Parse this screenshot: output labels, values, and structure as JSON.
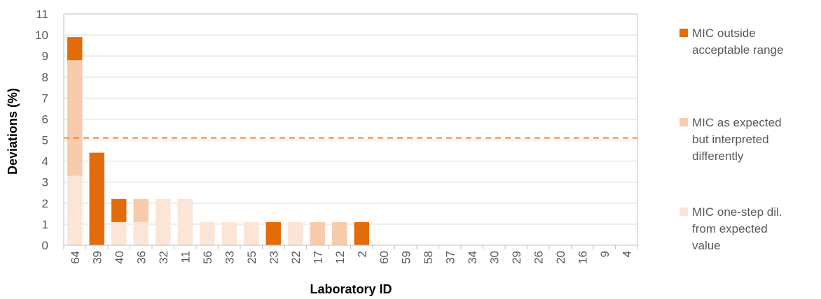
{
  "chart_data": {
    "type": "bar",
    "stacked": true,
    "xlabel": "Laboratory ID",
    "ylabel": "Deviations (%)",
    "ylim": [
      0,
      11
    ],
    "yticks": [
      "0",
      "1",
      "2",
      "3",
      "4",
      "5",
      "6",
      "7",
      "8",
      "9",
      "10",
      "11"
    ],
    "grid": true,
    "legend_position": "right",
    "categories": [
      "64",
      "39",
      "40",
      "36",
      "32",
      "11",
      "56",
      "33",
      "25",
      "23",
      "22",
      "17",
      "12",
      "2",
      "60",
      "59",
      "58",
      "37",
      "34",
      "30",
      "29",
      "26",
      "20",
      "16",
      "9",
      "4"
    ],
    "series": [
      {
        "name": "MIC one-step dil. from expected value",
        "color": "#fbe5d6",
        "values": [
          3.3,
          0,
          1.1,
          1.1,
          2.2,
          2.2,
          1.1,
          1.1,
          1.1,
          0,
          1.1,
          0,
          0,
          0,
          0,
          0,
          0,
          0,
          0,
          0,
          0,
          0,
          0,
          0,
          0,
          0
        ]
      },
      {
        "name": "MIC as expected but interpreted differently",
        "color": "#f8cbad",
        "values": [
          5.5,
          0,
          0,
          1.1,
          0,
          0,
          0,
          0,
          0,
          0,
          0,
          1.1,
          1.1,
          0,
          0,
          0,
          0,
          0,
          0,
          0,
          0,
          0,
          0,
          0,
          0,
          0
        ]
      },
      {
        "name": "MIC outside acceptable range",
        "color": "#e36c0a",
        "values": [
          1.1,
          4.4,
          1.1,
          0,
          0,
          0,
          0,
          0,
          0,
          1.1,
          0,
          0,
          0,
          1.1,
          0,
          0,
          0,
          0,
          0,
          0,
          0,
          0,
          0,
          0,
          0,
          0
        ]
      }
    ],
    "reference_line": {
      "value": 5.1,
      "style": "dashed",
      "color": "#ed7d31"
    }
  },
  "legend": [
    {
      "lines": [
        "MIC outside",
        "acceptable range"
      ],
      "color": "#e36c0a"
    },
    {
      "lines": [
        "MIC as expected",
        "but interpreted",
        "differently"
      ],
      "color": "#f8cbad"
    },
    {
      "lines": [
        "MIC one-step dil.",
        "from expected",
        "value"
      ],
      "color": "#fbe5d6"
    }
  ]
}
